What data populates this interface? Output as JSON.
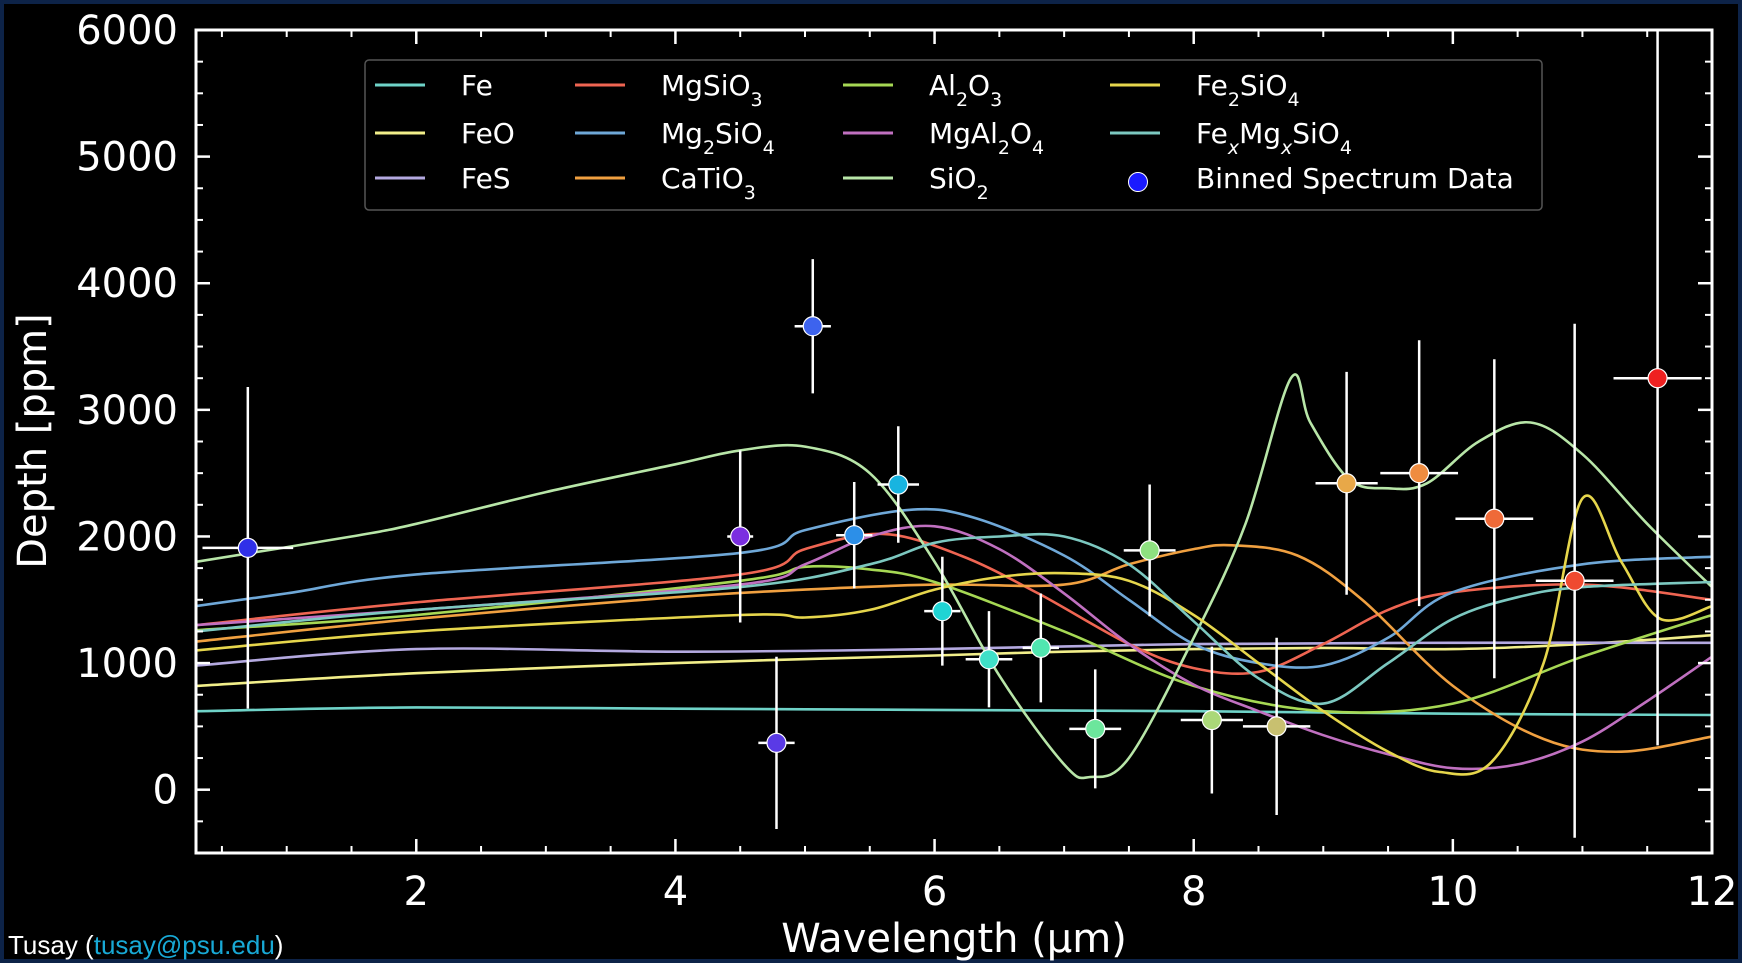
{
  "credit": {
    "prefix": "Tusay (",
    "email": "tusay@psu.edu",
    "suffix": ")"
  },
  "chart_data": {
    "type": "line",
    "xlabel": "Wavelength (µm)",
    "ylabel": "Depth [ppm]",
    "xlim": [
      0.3,
      12.0
    ],
    "ylim": [
      -500,
      6000
    ],
    "xticks": [
      2,
      4,
      6,
      8,
      10,
      12
    ],
    "yticks": [
      0,
      1000,
      2000,
      3000,
      4000,
      5000,
      6000
    ],
    "background": "#000000",
    "axis_color": "#ffffff",
    "legend_position": "top-center",
    "series": [
      {
        "name": "Fe",
        "name_html": "Fe",
        "color": "#6fd3c8",
        "x": [
          0.3,
          2,
          4,
          6,
          8,
          10,
          12
        ],
        "y": [
          620,
          650,
          640,
          630,
          620,
          600,
          590
        ]
      },
      {
        "name": "FeO",
        "name_html": "FeO",
        "color": "#f2ef8a",
        "x": [
          0.3,
          2,
          4,
          6,
          7,
          8,
          9,
          10,
          11,
          12
        ],
        "y": [
          820,
          920,
          1000,
          1060,
          1090,
          1110,
          1120,
          1110,
          1150,
          1220
        ]
      },
      {
        "name": "FeS",
        "name_html": "FeS",
        "color": "#b4a9e0",
        "x": [
          0.3,
          2,
          4,
          6,
          8,
          10,
          12
        ],
        "y": [
          980,
          1110,
          1090,
          1110,
          1150,
          1160,
          1160
        ]
      },
      {
        "name": "MgSiO3",
        "name_html": "MgSiO<tspan baseline-shift='sub' font-size='19'>3</tspan>",
        "color": "#ef6552",
        "x": [
          0.3,
          2,
          4.5,
          5,
          5.6,
          6.2,
          6.8,
          7.5,
          8,
          8.5,
          9,
          9.5,
          10,
          11,
          12
        ],
        "y": [
          1300,
          1480,
          1700,
          1900,
          2020,
          1850,
          1550,
          1150,
          960,
          930,
          1150,
          1420,
          1560,
          1620,
          1500
        ]
      },
      {
        "name": "Mg2SiO4",
        "name_html": "Mg<tspan baseline-shift='sub' font-size='19'>2</tspan>SiO<tspan baseline-shift='sub' font-size='19'>4</tspan>",
        "color": "#6fa8d8",
        "x": [
          0.3,
          1,
          2,
          4.5,
          5,
          5.8,
          6.3,
          7,
          7.5,
          8,
          8.5,
          9,
          9.5,
          10,
          11,
          12
        ],
        "y": [
          1450,
          1550,
          1700,
          1870,
          2050,
          2210,
          2150,
          1850,
          1500,
          1150,
          1000,
          980,
          1200,
          1560,
          1780,
          1840
        ]
      },
      {
        "name": "CaTiO3",
        "name_html": "CaTiO<tspan baseline-shift='sub' font-size='19'>3</tspan>",
        "color": "#f0a040",
        "x": [
          0.3,
          2,
          4,
          5,
          6,
          7,
          7.5,
          8,
          8.3,
          8.8,
          9.3,
          10,
          10.7,
          11.3,
          12
        ],
        "y": [
          1170,
          1350,
          1520,
          1580,
          1620,
          1620,
          1780,
          1900,
          1930,
          1850,
          1500,
          820,
          400,
          300,
          420
        ]
      },
      {
        "name": "Al2O3",
        "name_html": "Al<tspan baseline-shift='sub' font-size='19'>2</tspan>O<tspan baseline-shift='sub' font-size='19'>3</tspan>",
        "color": "#a6d854",
        "x": [
          0.3,
          2,
          4.5,
          5,
          5.5,
          6,
          7,
          8,
          9,
          10,
          11,
          12
        ],
        "y": [
          1260,
          1380,
          1650,
          1760,
          1740,
          1640,
          1250,
          820,
          620,
          680,
          1050,
          1380
        ]
      },
      {
        "name": "MgAl2O4",
        "name_html": "MgAl<tspan baseline-shift='sub' font-size='19'>2</tspan>O<tspan baseline-shift='sub' font-size='19'>4</tspan>",
        "color": "#c070c0",
        "x": [
          0.3,
          2,
          4.5,
          5,
          5.5,
          6,
          6.5,
          7,
          7.5,
          8,
          8.5,
          9,
          9.5,
          10,
          10.5,
          11,
          11.5,
          12
        ],
        "y": [
          1300,
          1420,
          1620,
          1780,
          2000,
          2080,
          1900,
          1550,
          1150,
          830,
          620,
          430,
          280,
          170,
          200,
          380,
          700,
          1050
        ]
      },
      {
        "name": "SiO2",
        "name_html": "SiO<tspan baseline-shift='sub' font-size='19'>2</tspan>",
        "color": "#b8e6a8",
        "x": [
          0.3,
          1.5,
          2,
          3,
          4,
          4.5,
          5,
          5.5,
          6,
          6.5,
          7,
          7.2,
          7.5,
          8,
          8.4,
          8.75,
          8.9,
          9.2,
          9.5,
          9.8,
          10.2,
          10.6,
          11,
          11.5,
          12
        ],
        "y": [
          1800,
          2000,
          2100,
          2350,
          2570,
          2680,
          2710,
          2500,
          1800,
          900,
          200,
          100,
          250,
          1200,
          2100,
          3250,
          2900,
          2450,
          2380,
          2420,
          2750,
          2900,
          2650,
          2100,
          1600
        ]
      },
      {
        "name": "Fe2SiO4",
        "name_html": "Fe<tspan baseline-shift='sub' font-size='19'>2</tspan>SiO<tspan baseline-shift='sub' font-size='19'>4</tspan>",
        "color": "#e6d64c",
        "x": [
          0.3,
          2,
          4.5,
          5,
          5.5,
          6,
          6.5,
          7,
          7.5,
          8,
          8.5,
          9,
          9.5,
          9.9,
          10.3,
          10.7,
          11,
          11.3,
          11.6,
          12
        ],
        "y": [
          1100,
          1250,
          1380,
          1360,
          1420,
          1580,
          1680,
          1710,
          1650,
          1380,
          1000,
          620,
          300,
          140,
          220,
          1000,
          2300,
          1800,
          1350,
          1450
        ]
      },
      {
        "name": "FexMgxSiO4",
        "name_html": "Fe<tspan baseline-shift='sub' font-size='19' font-style='italic'>x</tspan>Mg<tspan baseline-shift='sub' font-size='19' font-style='italic'>x</tspan>SiO<tspan baseline-shift='sub' font-size='19'>4</tspan>",
        "color": "#7cc8c0",
        "x": [
          0.3,
          2,
          4.5,
          5.5,
          6,
          6.5,
          7,
          7.5,
          8,
          8.5,
          9,
          9.5,
          10,
          10.5,
          11,
          12
        ],
        "y": [
          1250,
          1420,
          1600,
          1780,
          1950,
          2000,
          2000,
          1780,
          1330,
          880,
          680,
          1000,
          1350,
          1520,
          1600,
          1640
        ]
      }
    ],
    "points": {
      "name": "Binned Spectrum Data",
      "legend_color": "#1a1aff",
      "data": [
        {
          "x": 0.7,
          "y": 1910,
          "xerr": 0.35,
          "yerr": 1270,
          "color": "#2f2fe8"
        },
        {
          "x": 4.5,
          "y": 2000,
          "xerr": 0.1,
          "yerr": 680,
          "color": "#7b2ee0"
        },
        {
          "x": 4.78,
          "y": 370,
          "xerr": 0.14,
          "yerr": 680,
          "color": "#5a3ae6"
        },
        {
          "x": 5.06,
          "y": 3660,
          "xerr": 0.14,
          "yerr": 530,
          "color": "#3d63ee"
        },
        {
          "x": 5.38,
          "y": 2010,
          "xerr": 0.14,
          "yerr": 420,
          "color": "#2c8fe8"
        },
        {
          "x": 5.72,
          "y": 2410,
          "xerr": 0.16,
          "yerr": 460,
          "color": "#18b4e0"
        },
        {
          "x": 6.06,
          "y": 1410,
          "xerr": 0.14,
          "yerr": 430,
          "color": "#1fd4d4"
        },
        {
          "x": 6.42,
          "y": 1030,
          "xerr": 0.18,
          "yerr": 380,
          "color": "#3fe0c8"
        },
        {
          "x": 6.82,
          "y": 1120,
          "xerr": 0.14,
          "yerr": 430,
          "color": "#50e6b0"
        },
        {
          "x": 7.24,
          "y": 480,
          "xerr": 0.2,
          "yerr": 470,
          "color": "#6ce69c"
        },
        {
          "x": 7.66,
          "y": 1890,
          "xerr": 0.2,
          "yerr": 520,
          "color": "#8ee080"
        },
        {
          "x": 8.14,
          "y": 550,
          "xerr": 0.24,
          "yerr": 580,
          "color": "#aad878"
        },
        {
          "x": 8.64,
          "y": 500,
          "xerr": 0.26,
          "yerr": 700,
          "color": "#c8c070"
        },
        {
          "x": 9.18,
          "y": 2420,
          "xerr": 0.24,
          "yerr": 880,
          "color": "#e8a848"
        },
        {
          "x": 9.74,
          "y": 2500,
          "xerr": 0.3,
          "yerr": 1050,
          "color": "#ef8c40"
        },
        {
          "x": 10.32,
          "y": 2140,
          "xerr": 0.3,
          "yerr": 1260,
          "color": "#ef6a38"
        },
        {
          "x": 10.94,
          "y": 1650,
          "xerr": 0.3,
          "yerr": 2030,
          "color": "#ef4a30"
        },
        {
          "x": 11.58,
          "y": 3250,
          "xerr": 0.34,
          "yerr": 2900,
          "color": "#ef2020"
        }
      ]
    }
  }
}
